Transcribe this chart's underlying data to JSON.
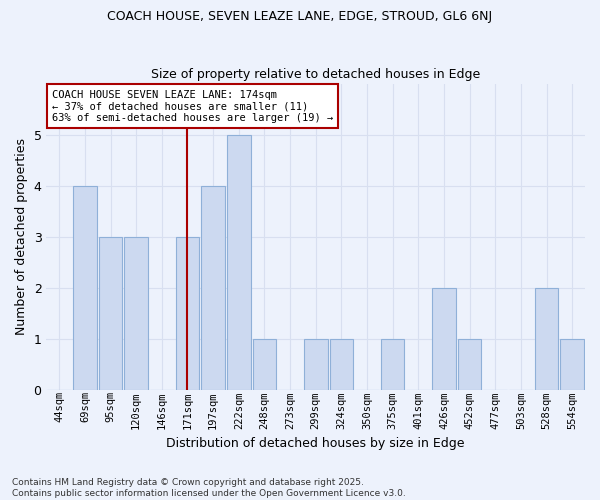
{
  "title1": "COACH HOUSE, SEVEN LEAZE LANE, EDGE, STROUD, GL6 6NJ",
  "title2": "Size of property relative to detached houses in Edge",
  "xlabel": "Distribution of detached houses by size in Edge",
  "ylabel": "Number of detached properties",
  "categories": [
    "44sqm",
    "69sqm",
    "95sqm",
    "120sqm",
    "146sqm",
    "171sqm",
    "197sqm",
    "222sqm",
    "248sqm",
    "273sqm",
    "299sqm",
    "324sqm",
    "350sqm",
    "375sqm",
    "401sqm",
    "426sqm",
    "452sqm",
    "477sqm",
    "503sqm",
    "528sqm",
    "554sqm"
  ],
  "values": [
    0,
    4,
    3,
    3,
    0,
    3,
    4,
    5,
    1,
    0,
    1,
    1,
    0,
    1,
    0,
    2,
    1,
    0,
    0,
    2,
    1
  ],
  "bar_color": "#ccd9f0",
  "bar_edge_color": "#8fb0d8",
  "vline_index": 5,
  "vline_color": "#aa0000",
  "annotation_line1": "COACH HOUSE SEVEN LEAZE LANE: 174sqm",
  "annotation_line2": "← 37% of detached houses are smaller (11)",
  "annotation_line3": "63% of semi-detached houses are larger (19) →",
  "annotation_box_color": "#ffffff",
  "annotation_box_edge": "#aa0000",
  "ylim": [
    0,
    6
  ],
  "yticks": [
    0,
    1,
    2,
    3,
    4,
    5
  ],
  "background_color": "#edf2fc",
  "grid_color": "#d8dff0",
  "footer": "Contains HM Land Registry data © Crown copyright and database right 2025.\nContains public sector information licensed under the Open Government Licence v3.0."
}
